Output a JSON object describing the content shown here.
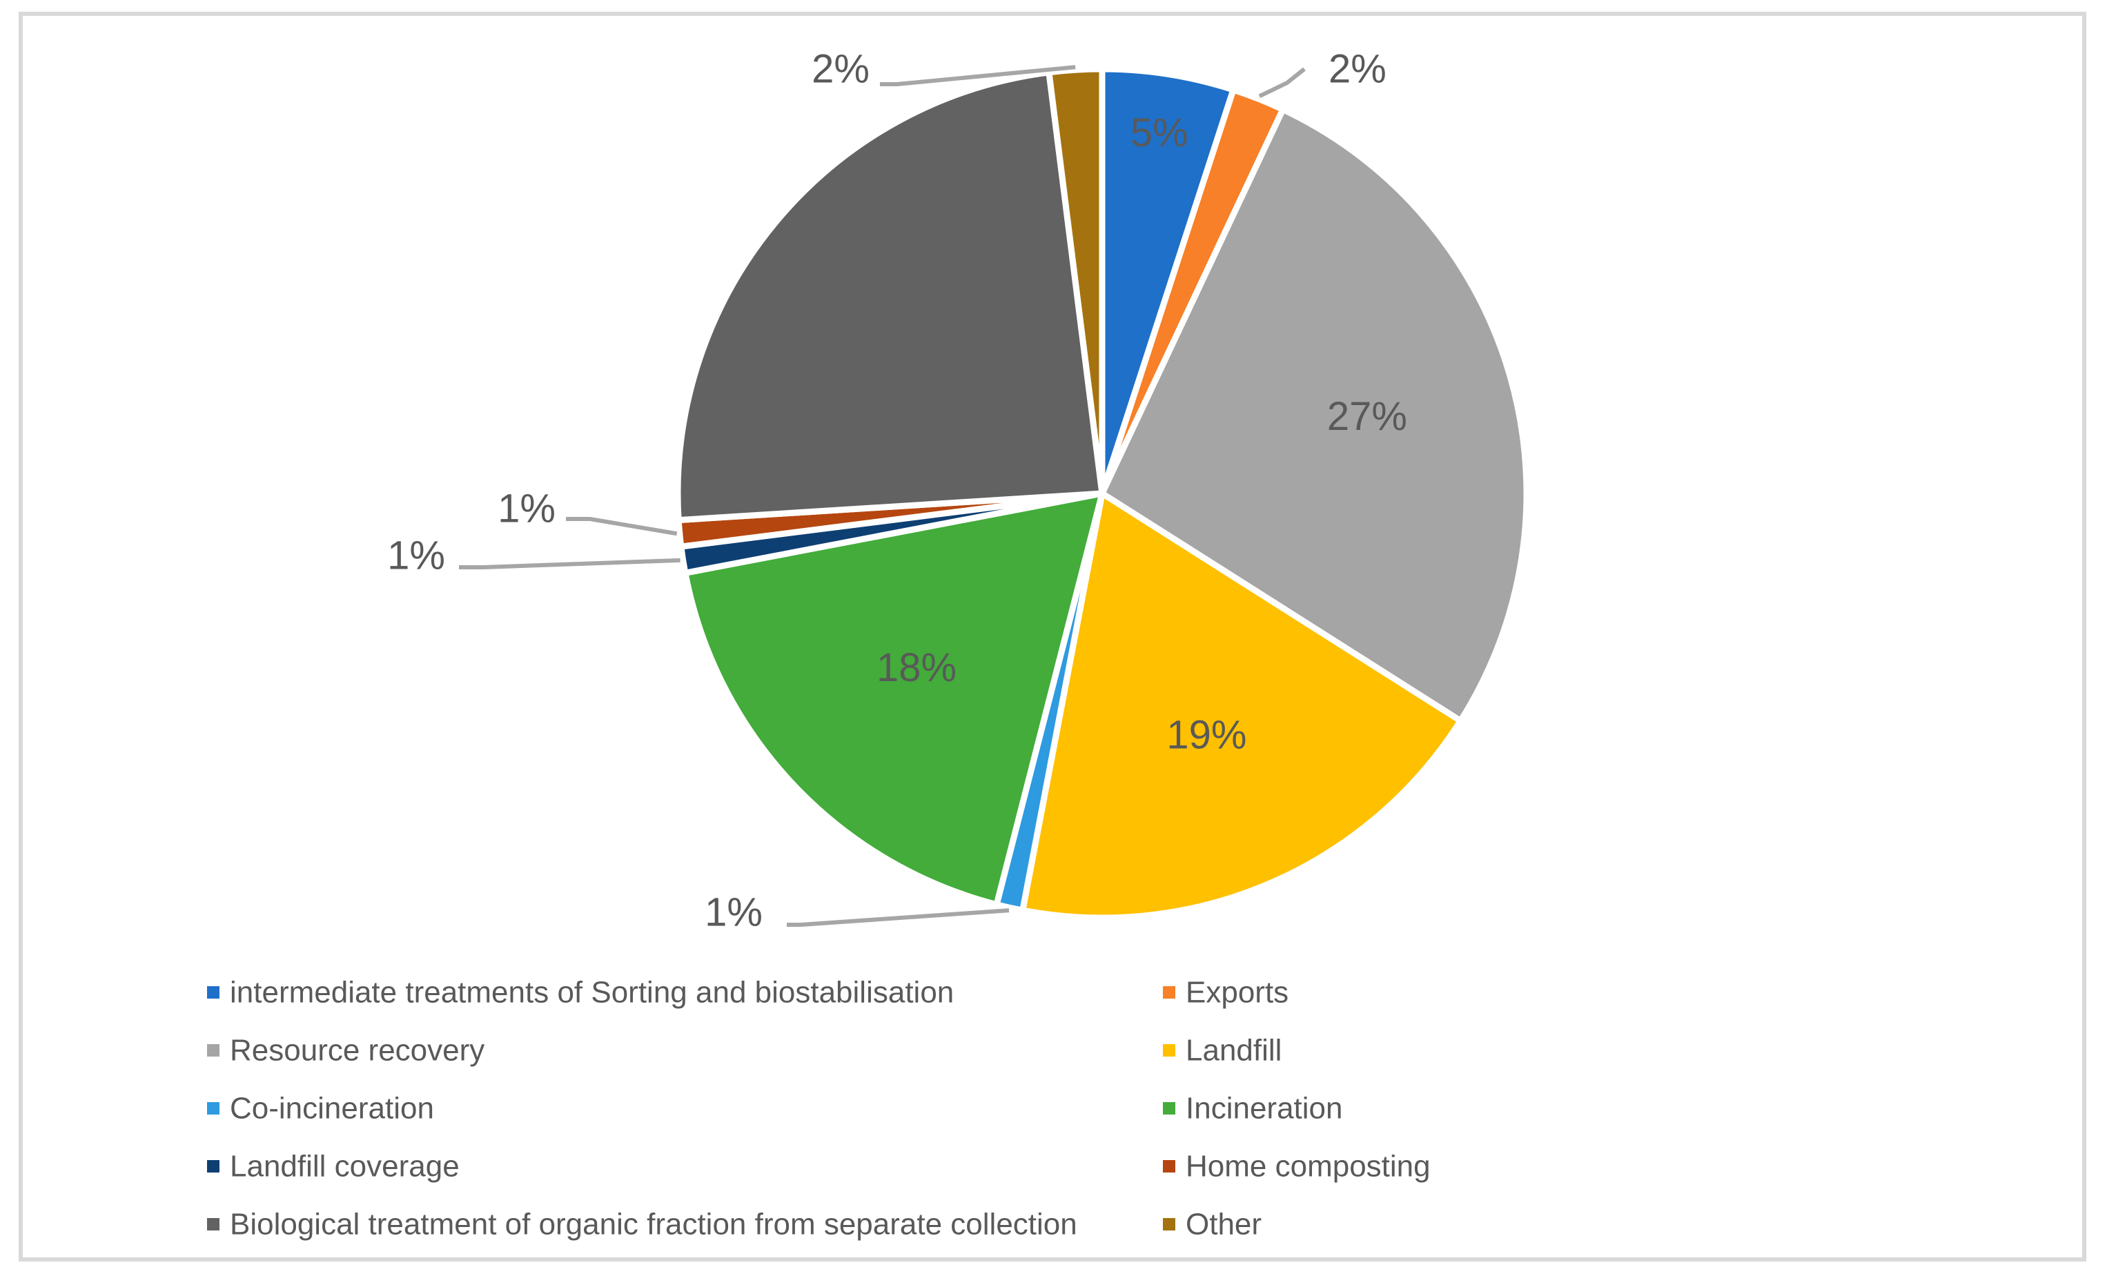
{
  "chart_data": {
    "type": "pie",
    "title": "",
    "legend_placement": "bottom",
    "series": [
      {
        "name": "intermediate treatments of Sorting and biostabilisation",
        "value": 5,
        "label": "5%",
        "color": "#1F70C9"
      },
      {
        "name": "Exports",
        "value": 2,
        "label": "2%",
        "color": "#F78028"
      },
      {
        "name": "Resource recovery",
        "value": 27,
        "label": "27%",
        "color": "#A5A5A5"
      },
      {
        "name": "Landfill",
        "value": 19,
        "label": "19%",
        "color": "#FFC000"
      },
      {
        "name": "Co-incineration",
        "value": 1,
        "label": "1%",
        "color": "#2E9AE0"
      },
      {
        "name": "Incineration",
        "value": 18,
        "label": "18%",
        "color": "#43AC3B"
      },
      {
        "name": "Landfill coverage",
        "value": 1,
        "label": "1%",
        "color": "#0E3F73"
      },
      {
        "name": "Home composting",
        "value": 1,
        "label": "1%",
        "color": "#B5460F"
      },
      {
        "name": "Biological treatment of organic fraction from separate collection",
        "value": 24,
        "label": "",
        "color": "#626262"
      },
      {
        "name": "Other",
        "value": 2,
        "label": "2%",
        "color": "#A4730F"
      }
    ]
  }
}
